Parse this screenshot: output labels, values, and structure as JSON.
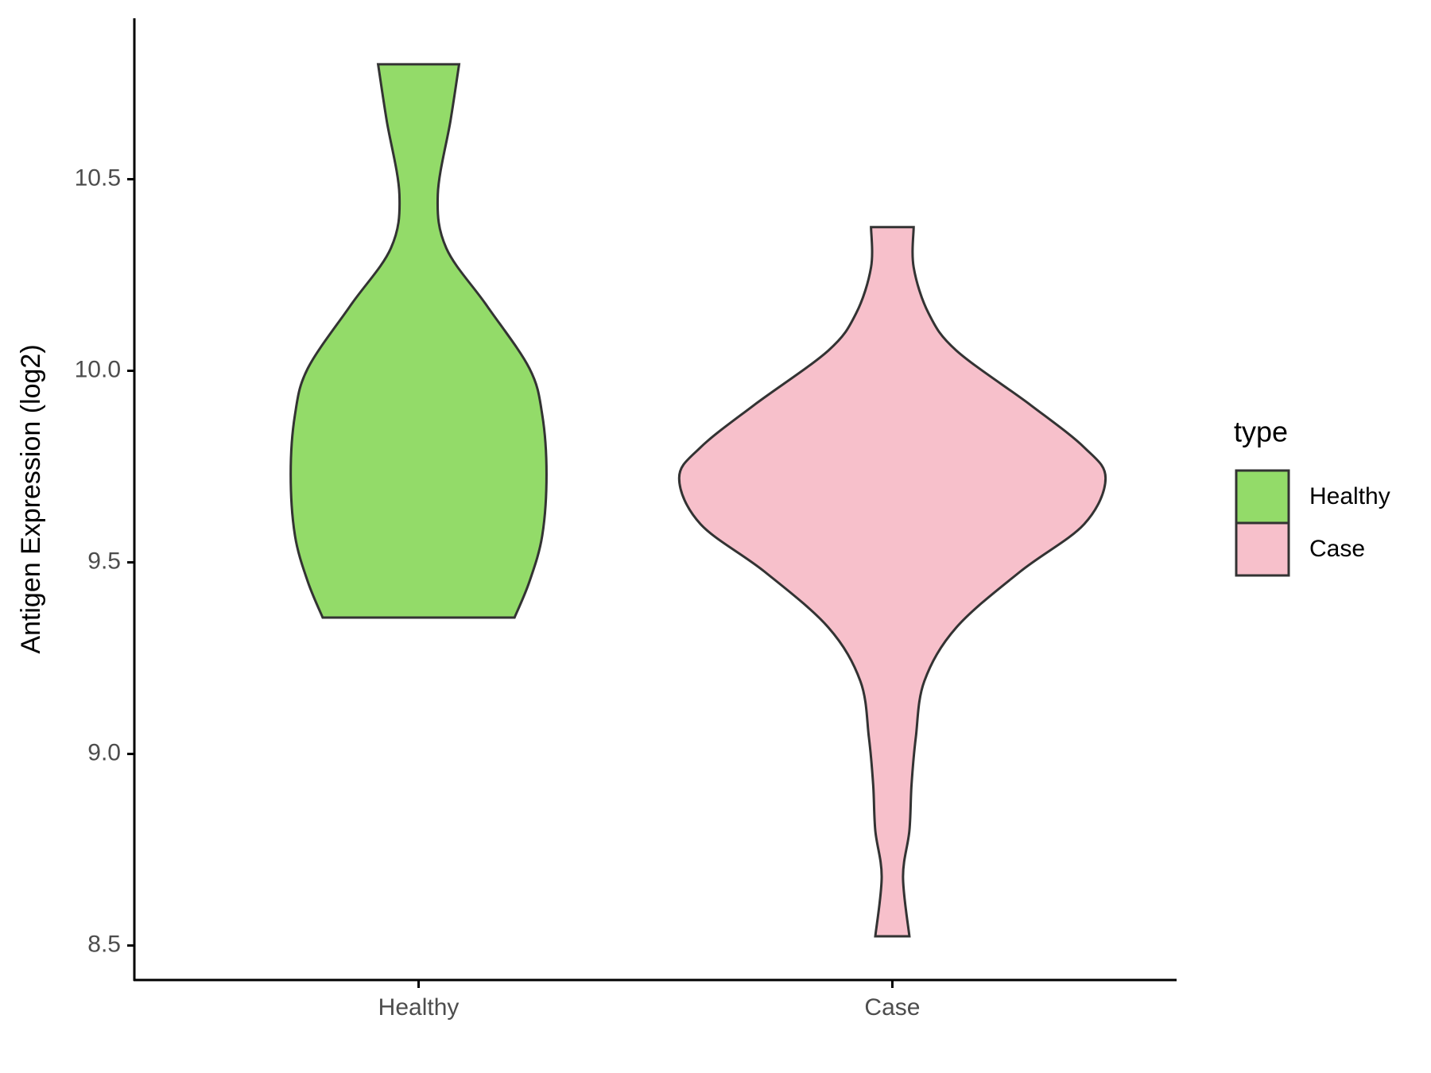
{
  "chart_data": {
    "type": "violin",
    "y_label": "Antigen Expression (log2)",
    "categories": [
      "Healthy",
      "Case"
    ],
    "legend_title": "type",
    "legend_position": "right",
    "series": [
      {
        "name": "Healthy",
        "color": "#93db69",
        "y": [
          9.356,
          9.45,
          9.57,
          9.73,
          9.885,
          10.006,
          10.17,
          10.32,
          10.46,
          10.654,
          10.8
        ],
        "widths": [
          0.45,
          0.52,
          0.58,
          0.6,
          0.58,
          0.52,
          0.32,
          0.13,
          0.09,
          0.15,
          0.19
        ]
      },
      {
        "name": "Case",
        "color": "#f7c0cb",
        "y": [
          8.524,
          8.68,
          8.8,
          8.92,
          9.043,
          9.19,
          9.33,
          9.476,
          9.6,
          9.72,
          9.8,
          9.91,
          10.053,
          10.15,
          10.27,
          10.375
        ],
        "widths": [
          0.08,
          0.05,
          0.08,
          0.09,
          0.11,
          0.15,
          0.3,
          0.6,
          0.9,
          1.0,
          0.9,
          0.65,
          0.3,
          0.17,
          0.1,
          0.1
        ]
      }
    ],
    "ylim": [
      8.41,
      10.92
    ],
    "yticks": [
      8.5,
      {
        "value": 9,
        "label": "9.0"
      },
      9.5,
      {
        "value": 10,
        "label": "10.0"
      },
      10.5
    ],
    "grid": false
  }
}
